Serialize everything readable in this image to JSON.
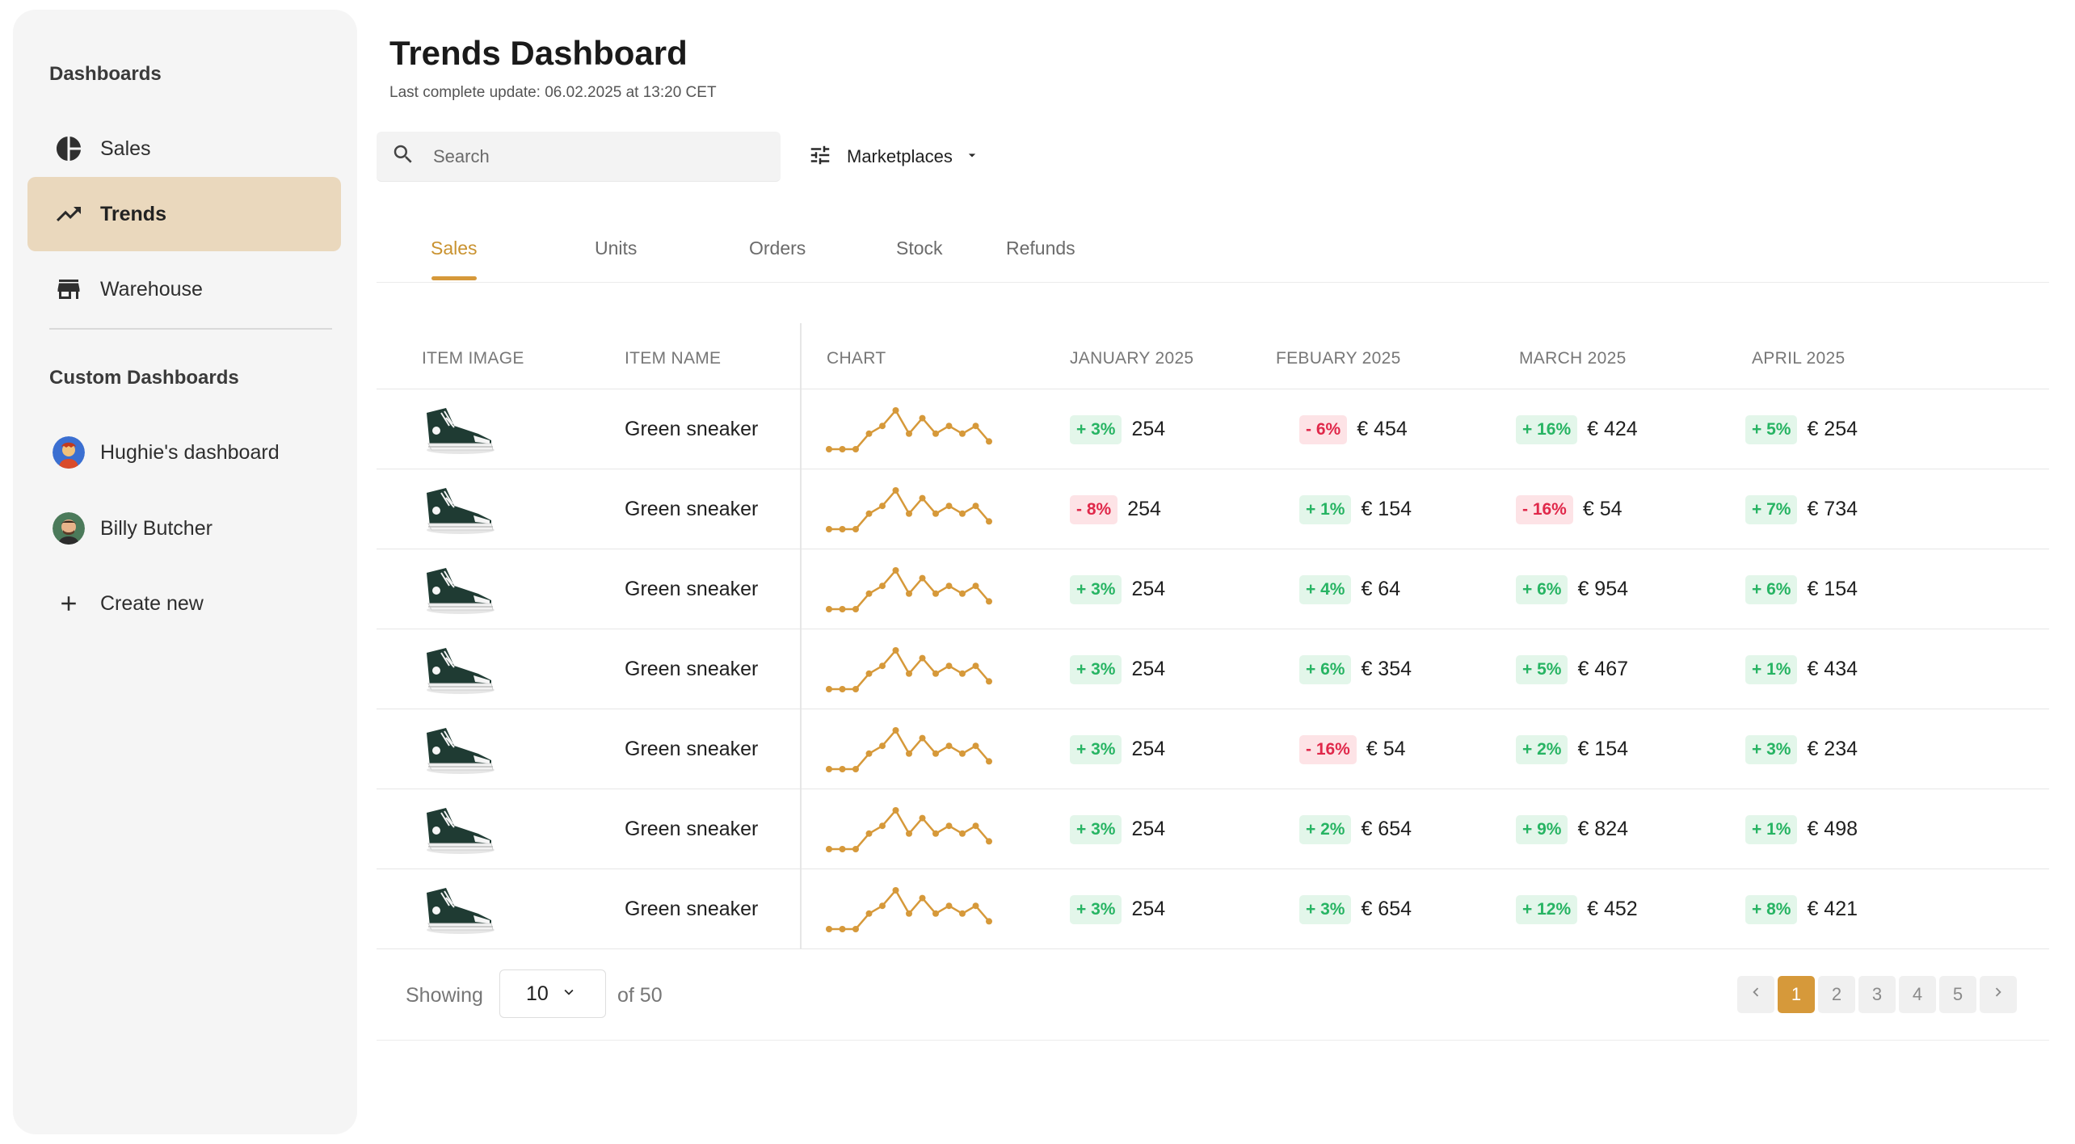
{
  "sidebar": {
    "heading": "Dashboards",
    "items": [
      {
        "label": "Sales",
        "icon": "pie-chart-icon"
      },
      {
        "label": "Trends",
        "icon": "trending-up-icon",
        "active": true
      },
      {
        "label": "Warehouse",
        "icon": "store-icon"
      }
    ],
    "custom_heading": "Custom Dashboards",
    "custom_items": [
      {
        "label": "Hughie's dashboard",
        "icon": "avatar"
      },
      {
        "label": "Billy Butcher",
        "icon": "avatar"
      },
      {
        "label": "Create new",
        "icon": "plus-icon"
      }
    ]
  },
  "header": {
    "title": "Trends Dashboard",
    "subtitle": "Last complete update: 06.02.2025 at 13:20 CET"
  },
  "search": {
    "placeholder": "Search"
  },
  "filter": {
    "label": "Marketplaces"
  },
  "tabs": [
    "Sales",
    "Units",
    "Orders",
    "Stock",
    "Refunds"
  ],
  "active_tab": "Sales",
  "table": {
    "columns": [
      "ITEM IMAGE",
      "ITEM NAME",
      "CHART",
      "JANUARY 2025",
      "FEBUARY 2025",
      "MARCH 2025",
      "APRIL 2025"
    ],
    "rows": [
      {
        "name": "Green sneaker",
        "jan": {
          "badge": "+ 3%",
          "dir": "up",
          "value": "254"
        },
        "feb": {
          "badge": "- 6%",
          "dir": "down",
          "value": "€ 454"
        },
        "mar": {
          "badge": "+ 16%",
          "dir": "up",
          "value": "€ 424"
        },
        "apr": {
          "badge": "+ 5%",
          "dir": "up",
          "value": "€ 254"
        }
      },
      {
        "name": "Green sneaker",
        "jan": {
          "badge": "- 8%",
          "dir": "down",
          "value": "254"
        },
        "feb": {
          "badge": "+ 1%",
          "dir": "up",
          "value": "€ 154"
        },
        "mar": {
          "badge": "- 16%",
          "dir": "down",
          "value": "€ 54"
        },
        "apr": {
          "badge": "+ 7%",
          "dir": "up",
          "value": "€ 734"
        }
      },
      {
        "name": "Green sneaker",
        "jan": {
          "badge": "+ 3%",
          "dir": "up",
          "value": "254"
        },
        "feb": {
          "badge": "+ 4%",
          "dir": "up",
          "value": "€ 64"
        },
        "mar": {
          "badge": "+ 6%",
          "dir": "up",
          "value": "€ 954"
        },
        "apr": {
          "badge": "+ 6%",
          "dir": "up",
          "value": "€ 154"
        }
      },
      {
        "name": "Green sneaker",
        "jan": {
          "badge": "+ 3%",
          "dir": "up",
          "value": "254"
        },
        "feb": {
          "badge": "+ 6%",
          "dir": "up",
          "value": "€ 354"
        },
        "mar": {
          "badge": "+ 5%",
          "dir": "up",
          "value": "€ 467"
        },
        "apr": {
          "badge": "+ 1%",
          "dir": "up",
          "value": "€ 434"
        }
      },
      {
        "name": "Green sneaker",
        "jan": {
          "badge": "+ 3%",
          "dir": "up",
          "value": "254"
        },
        "feb": {
          "badge": "- 16%",
          "dir": "down",
          "value": "€ 54"
        },
        "mar": {
          "badge": "+ 2%",
          "dir": "up",
          "value": "€ 154"
        },
        "apr": {
          "badge": "+ 3%",
          "dir": "up",
          "value": "€ 234"
        }
      },
      {
        "name": "Green sneaker",
        "jan": {
          "badge": "+ 3%",
          "dir": "up",
          "value": "254"
        },
        "feb": {
          "badge": "+ 2%",
          "dir": "up",
          "value": "€ 654"
        },
        "mar": {
          "badge": "+ 9%",
          "dir": "up",
          "value": "€ 824"
        },
        "apr": {
          "badge": "+ 1%",
          "dir": "up",
          "value": "€ 498"
        }
      },
      {
        "name": "Green sneaker",
        "jan": {
          "badge": "+ 3%",
          "dir": "up",
          "value": "254"
        },
        "feb": {
          "badge": "+ 3%",
          "dir": "up",
          "value": "€ 654"
        },
        "mar": {
          "badge": "+ 12%",
          "dir": "up",
          "value": "€ 452"
        },
        "apr": {
          "badge": "+ 8%",
          "dir": "up",
          "value": "€ 421"
        }
      }
    ],
    "sparkline": [
      1,
      1,
      1,
      3,
      4,
      6,
      3,
      5,
      3,
      4,
      3,
      4,
      2
    ]
  },
  "pagination": {
    "showing_label": "Showing",
    "page_size": "10",
    "of_total": "of 50",
    "pages": [
      "1",
      "2",
      "3",
      "4",
      "5"
    ],
    "current": "1"
  },
  "colors": {
    "accent": "#d6993a",
    "active_bg": "#ead8bd",
    "up_bg": "#e3f6ea",
    "up_fg": "#27b463",
    "down_bg": "#fde3e6",
    "down_fg": "#e0284a"
  }
}
